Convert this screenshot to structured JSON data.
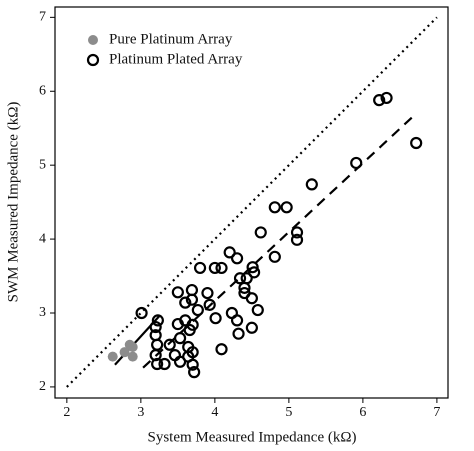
{
  "chart_data": {
    "type": "scatter",
    "xlabel": "System Measured Impedance (kΩ)",
    "ylabel": "SWM Measured Impedance (kΩ)",
    "xlim": [
      1.84,
      7.15
    ],
    "ylim": [
      1.85,
      7.14
    ],
    "xticks": [
      2,
      3,
      4,
      5,
      6,
      7
    ],
    "yticks": [
      2,
      3,
      4,
      5,
      6,
      7
    ],
    "legend": "upper left",
    "series": [
      {
        "name": "Pure Platinum Array",
        "color": "#8c8c8c",
        "marker": "filled",
        "x": [
          2.62,
          2.78,
          2.89,
          2.89,
          2.85
        ],
        "y": [
          2.41,
          2.47,
          2.54,
          2.41,
          2.57
        ]
      },
      {
        "name": "Platinum Plated Array",
        "color": "#000000",
        "marker": "open",
        "x": [
          3.01,
          3.2,
          3.2,
          3.22,
          3.2,
          3.22,
          3.32,
          3.23,
          3.39,
          3.46,
          3.5,
          3.5,
          3.53,
          3.53,
          3.6,
          3.6,
          3.64,
          3.64,
          3.66,
          3.69,
          3.69,
          3.7,
          3.7,
          3.7,
          3.72,
          3.77,
          3.8,
          3.9,
          3.93,
          4.0,
          4.01,
          4.09,
          4.09,
          4.2,
          4.23,
          4.3,
          4.3,
          4.32,
          4.34,
          4.4,
          4.4,
          4.43,
          4.5,
          4.5,
          4.51,
          4.53,
          4.58,
          4.62,
          4.81,
          4.81,
          4.97,
          5.11,
          5.11,
          5.31,
          5.91,
          6.22,
          6.32,
          6.72
        ],
        "y": [
          3.0,
          2.81,
          2.7,
          2.57,
          2.43,
          2.31,
          2.31,
          2.9,
          2.57,
          2.43,
          3.28,
          2.85,
          2.66,
          2.34,
          3.14,
          2.9,
          2.54,
          2.41,
          2.77,
          3.31,
          3.18,
          2.84,
          2.47,
          2.3,
          2.2,
          3.04,
          3.61,
          3.27,
          3.11,
          3.61,
          2.93,
          3.61,
          2.51,
          3.82,
          3.0,
          3.74,
          2.9,
          2.72,
          3.47,
          3.34,
          3.27,
          3.47,
          2.8,
          3.2,
          3.62,
          3.55,
          3.04,
          4.09,
          3.76,
          4.43,
          4.43,
          3.99,
          4.09,
          4.74,
          5.03,
          5.88,
          5.91,
          5.3
        ]
      }
    ],
    "lines": [
      {
        "style": "dotted",
        "x": [
          2,
          7
        ],
        "y": [
          2,
          7
        ]
      },
      {
        "style": "dashed",
        "x": [
          3.03,
          6.7
        ],
        "y": [
          2.26,
          5.68
        ]
      },
      {
        "style": "solid",
        "x": [
          2.65,
          3.26
        ],
        "y": [
          2.3,
          2.97
        ]
      }
    ]
  }
}
